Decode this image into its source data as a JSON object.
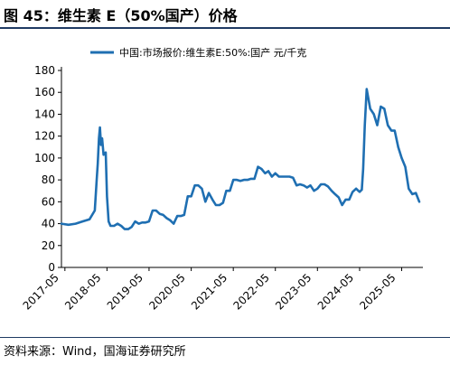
{
  "figure": {
    "title": "图 45：维生素 E（50%国产）价格",
    "source": "资料来源：Wind，国海证券研究所"
  },
  "chart_data": {
    "type": "line",
    "title": "",
    "xlabel": "",
    "ylabel": "",
    "ylim": [
      0,
      180
    ],
    "y_ticks": [
      0,
      20,
      40,
      60,
      80,
      100,
      120,
      140,
      160,
      180
    ],
    "x_range": [
      "2017-04",
      "2025-11"
    ],
    "x_tick_labels": [
      "2017-05",
      "2018-05",
      "2019-05",
      "2020-05",
      "2021-05",
      "2022-05",
      "2023-05",
      "2024-05",
      "2025-05"
    ],
    "legend_position": "top",
    "grid": false,
    "color": "#1f6fb2",
    "series": [
      {
        "name": "中国:市场报价:维生素E:50%:国产 元/千克",
        "x": [
          "2017-04-01",
          "2017-06-01",
          "2017-08-01",
          "2017-10-01",
          "2017-12-01",
          "2018-01-15",
          "2018-02-01",
          "2018-02-10",
          "2018-02-20",
          "2018-03-01",
          "2018-03-10",
          "2018-03-20",
          "2018-04-01",
          "2018-04-20",
          "2018-05-01",
          "2018-05-15",
          "2018-06-01",
          "2018-07-01",
          "2018-08-01",
          "2018-09-01",
          "2018-10-01",
          "2018-11-01",
          "2018-12-01",
          "2019-01-01",
          "2019-02-01",
          "2019-03-01",
          "2019-04-01",
          "2019-05-01",
          "2019-06-01",
          "2019-07-01",
          "2019-08-01",
          "2019-09-01",
          "2019-10-01",
          "2019-11-01",
          "2019-12-01",
          "2020-01-01",
          "2020-02-01",
          "2020-03-01",
          "2020-04-01",
          "2020-05-01",
          "2020-06-01",
          "2020-07-01",
          "2020-08-01",
          "2020-09-01",
          "2020-10-01",
          "2020-11-01",
          "2020-12-01",
          "2021-01-01",
          "2021-02-01",
          "2021-03-01",
          "2021-04-01",
          "2021-05-01",
          "2021-06-01",
          "2021-07-01",
          "2021-08-01",
          "2021-09-01",
          "2021-10-01",
          "2021-11-01",
          "2021-12-01",
          "2022-01-01",
          "2022-02-01",
          "2022-03-01",
          "2022-04-01",
          "2022-05-01",
          "2022-06-01",
          "2022-07-01",
          "2022-08-01",
          "2022-09-01",
          "2022-10-01",
          "2022-11-01",
          "2022-12-01",
          "2023-01-01",
          "2023-02-01",
          "2023-03-01",
          "2023-04-01",
          "2023-05-01",
          "2023-06-01",
          "2023-07-01",
          "2023-08-01",
          "2023-09-01",
          "2023-10-01",
          "2023-11-01",
          "2023-12-01",
          "2024-01-01",
          "2024-02-01",
          "2024-03-01",
          "2024-04-01",
          "2024-04-20",
          "2024-05-01",
          "2024-05-10",
          "2024-05-20",
          "2024-06-01",
          "2024-06-15",
          "2024-07-01",
          "2024-08-01",
          "2024-09-01",
          "2024-10-01",
          "2024-11-01",
          "2024-12-01",
          "2025-01-01",
          "2025-02-01",
          "2025-03-01",
          "2025-04-01",
          "2025-05-01",
          "2025-06-01",
          "2025-07-01",
          "2025-08-01",
          "2025-09-01",
          "2025-10-01"
        ],
        "y": [
          40,
          39,
          40,
          42,
          44,
          52,
          80,
          95,
          118,
          128,
          112,
          118,
          103,
          105,
          65,
          42,
          38,
          38,
          40,
          38,
          35,
          35,
          37,
          42,
          40,
          41,
          41,
          42,
          52,
          52,
          49,
          48,
          45,
          43,
          40,
          47,
          47,
          48,
          65,
          65,
          75,
          75,
          72,
          60,
          68,
          62,
          57,
          57,
          59,
          70,
          70,
          80,
          80,
          79,
          80,
          80,
          81,
          81,
          92,
          90,
          86,
          88,
          83,
          86,
          83,
          83,
          83,
          83,
          82,
          75,
          76,
          75,
          73,
          75,
          70,
          72,
          76,
          76,
          74,
          70,
          67,
          64,
          57,
          62,
          62,
          69,
          72,
          70,
          69,
          70,
          71,
          90,
          130,
          163,
          145,
          140,
          130,
          147,
          145,
          130,
          125,
          125,
          110,
          100,
          92,
          72,
          67,
          68,
          60
        ]
      }
    ]
  }
}
